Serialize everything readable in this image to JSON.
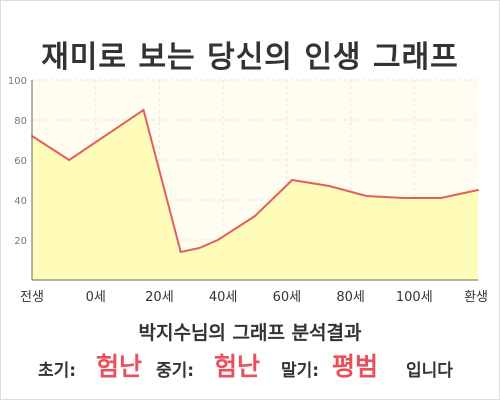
{
  "title": "재미로 보는 당신의 인생 그래프",
  "subtitle": "박지수님의 그래프 분석결과",
  "result": {
    "early_label": "초기:",
    "early_value": "험난",
    "middle_label": "중기:",
    "middle_value": "험난",
    "late_label": "말기:",
    "late_value": "평범",
    "suffix": "입니다"
  },
  "colors": {
    "line": "#e06060",
    "fill": "#fffbb8",
    "plot_bg": "#fffdf0",
    "highlight": "#e8505b"
  },
  "chart_data": {
    "type": "area",
    "title": "재미로 보는 당신의 인생 그래프",
    "xlabel": "",
    "ylabel": "",
    "x_ticks": [
      "전생",
      "0세",
      "20세",
      "40세",
      "60세",
      "80세",
      "100세",
      "환생"
    ],
    "y_ticks": [
      20,
      40,
      60,
      80,
      100
    ],
    "xlim": [
      -10,
      110
    ],
    "ylim": [
      0,
      100
    ],
    "grid": true,
    "series": [
      {
        "x": [
          -10,
          0,
          20,
          30,
          35,
          40,
          50,
          55,
          60,
          70,
          80,
          90,
          100,
          110
        ],
        "values": [
          72,
          60,
          85,
          14,
          16,
          20,
          32,
          41,
          50,
          47,
          42,
          41,
          41,
          45
        ]
      }
    ]
  }
}
